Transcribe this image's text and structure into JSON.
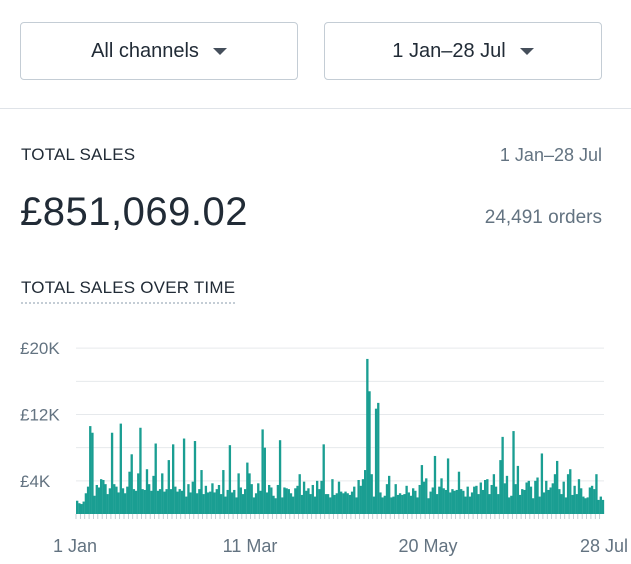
{
  "filters": {
    "channel": "All channels",
    "date_range": "1 Jan–28 Jul"
  },
  "summary": {
    "label": "TOTAL SALES",
    "range": "1 Jan–28 Jul",
    "value": "£851,069.02",
    "orders": "24,491 orders"
  },
  "chart_title": "TOTAL SALES OVER TIME",
  "colors": {
    "bar": "#1a9e92",
    "grid": "#e6e9ec",
    "axis_text": "#637381"
  },
  "chart_data": {
    "type": "bar",
    "title": "TOTAL SALES OVER TIME",
    "x_start": "1 Jan",
    "x_end": "28 Jul",
    "x_ticks": [
      "1 Jan",
      "11 Mar",
      "20 May",
      "28 Jul"
    ],
    "y_ticks": [
      "£4K",
      "£12K",
      "£20K"
    ],
    "y_tick_values": [
      4000,
      12000,
      20000
    ],
    "ylim": [
      0,
      20500
    ],
    "grid": true,
    "values": [
      1600,
      1300,
      1200,
      1500,
      2500,
      3300,
      10600,
      9800,
      2200,
      3500,
      3200,
      4200,
      4100,
      3600,
      2400,
      3100,
      9800,
      3600,
      3300,
      2600,
      10900,
      3100,
      2500,
      3300,
      5100,
      7200,
      3000,
      2800,
      4900,
      10400,
      3000,
      2900,
      5400,
      3600,
      2800,
      4600,
      8500,
      2800,
      3000,
      4900,
      2700,
      3000,
      6500,
      3000,
      8400,
      3300,
      2700,
      3000,
      2800,
      9100,
      2100,
      3600,
      2600,
      3900,
      8800,
      2500,
      3000,
      5300,
      2400,
      3400,
      2600,
      2700,
      3700,
      2600,
      3000,
      3500,
      2400,
      5300,
      2100,
      2900,
      8300,
      2600,
      2900,
      2000,
      4900,
      3200,
      2400,
      3000,
      6200,
      4900,
      3600,
      2000,
      2500,
      3700,
      2800,
      10200,
      8000,
      2600,
      3500,
      3200,
      2200,
      1900,
      3500,
      8900,
      2000,
      3200,
      3100,
      3000,
      2500,
      2100,
      3100,
      3400,
      4800,
      2300,
      3900,
      2800,
      3100,
      2400,
      3500,
      2100,
      4000,
      3000,
      4000,
      8400,
      2400,
      2400,
      2000,
      4200,
      2300,
      2500,
      3900,
      2700,
      2500,
      2700,
      2500,
      2300,
      2700,
      3300,
      2000,
      4100,
      3400,
      4200,
      5300,
      18700,
      14800,
      4800,
      2100,
      12700,
      13400,
      2600,
      2000,
      2200,
      3600,
      4600,
      2000,
      2100,
      3600,
      2300,
      2500,
      2300,
      2400,
      3400,
      2600,
      2200,
      3100,
      2800,
      2000,
      3500,
      5900,
      3900,
      4300,
      1900,
      2700,
      3200,
      7000,
      2400,
      3300,
      4300,
      3100,
      2900,
      6700,
      2600,
      3000,
      2800,
      2900,
      5100,
      3000,
      2800,
      2100,
      3300,
      2100,
      2600,
      3300,
      3400,
      2400,
      3800,
      2900,
      4100,
      4200,
      2400,
      3500,
      4800,
      3300,
      2400,
      6500,
      9300,
      3700,
      4600,
      2000,
      2200,
      10000,
      3600,
      5800,
      2300,
      3000,
      2900,
      3800,
      4000,
      3300,
      1900,
      4000,
      4400,
      2100,
      7300,
      2600,
      4000,
      2900,
      3200,
      3700,
      4800,
      6400,
      3000,
      2400,
      3900,
      2000,
      4800,
      5400,
      2300,
      3400,
      2400,
      4200,
      3100,
      2100,
      1900,
      2000,
      3200,
      3400,
      3000,
      4800,
      1700,
      2100,
      1700
    ]
  }
}
